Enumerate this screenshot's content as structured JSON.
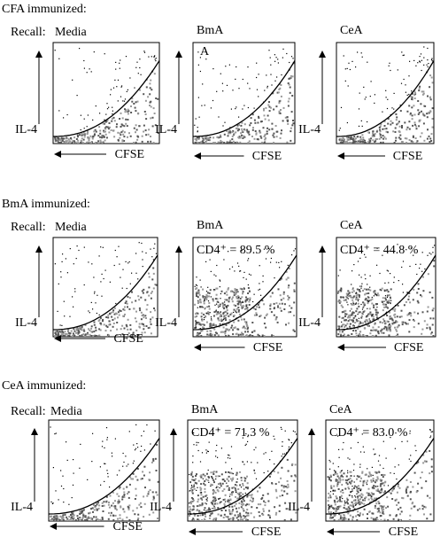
{
  "sections": [
    {
      "title": "CFA immunized:",
      "recall": "Recall:",
      "panels": [
        {
          "label": "Media"
        },
        {
          "label": "BmA",
          "marker": "A"
        },
        {
          "label": "CeA"
        }
      ]
    },
    {
      "title": "BmA immunized:",
      "recall": "Recall:",
      "panels": [
        {
          "label": "Media"
        },
        {
          "label": "BmA",
          "annotation": "CD4⁺ = 89.5 %"
        },
        {
          "label": "CeA",
          "annotation": "CD4⁺ = 44.8 %"
        }
      ]
    },
    {
      "title": "CeA immunized:",
      "recall": "Recall:",
      "panels": [
        {
          "label": "Media"
        },
        {
          "label": "BmA",
          "annotation": "CD4⁺ = 71.3 %"
        },
        {
          "label": "CeA",
          "annotation": "CD4⁺ = 83.0 %"
        }
      ]
    }
  ],
  "y_axis_label": "IL-4",
  "x_axis_label": "CFSE"
}
